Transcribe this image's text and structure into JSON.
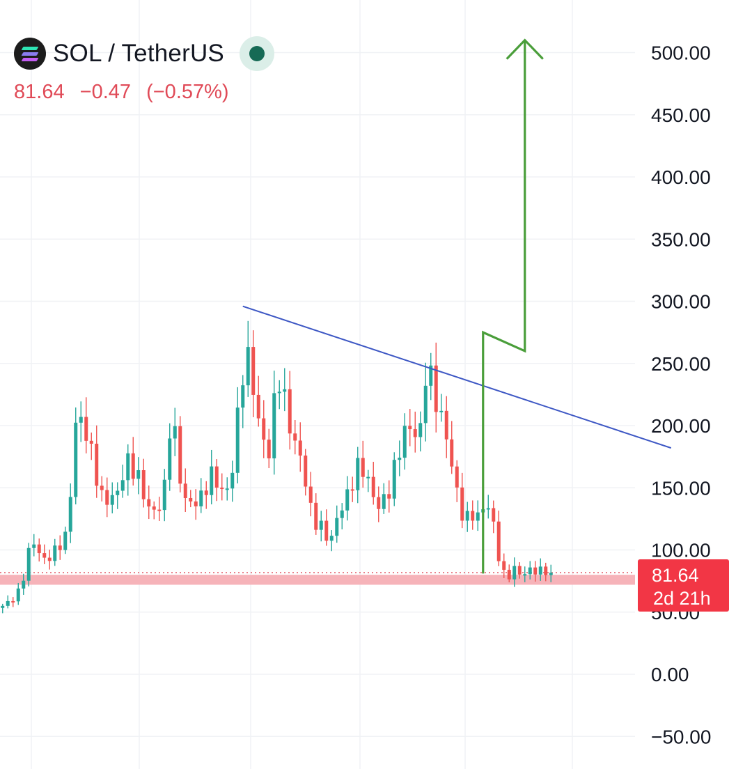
{
  "header": {
    "symbol_title": "SOL / TetherUS",
    "logo_icon": "solana-logo-icon",
    "status_icon": "market-open-dot-icon",
    "status_color": "#166a55"
  },
  "quote": {
    "last": "81.64",
    "change": "−0.47",
    "change_pct": "(−0.57%)",
    "color": "#e04a57"
  },
  "price_tag": {
    "price": "81.64",
    "countdown": "2d 21h",
    "color": "#f23645"
  },
  "chart_data": {
    "type": "candlestick",
    "ylim": [
      -75,
      525
    ],
    "y_ticks": [
      -50,
      0,
      50,
      100,
      150,
      200,
      250,
      300,
      350,
      400,
      450,
      500
    ],
    "y_tick_labels": [
      "−50.00",
      "0.00",
      "50.00",
      "100.00",
      "150.00",
      "200.00",
      "250.00",
      "300.00",
      "350.00",
      "400.00",
      "450.00",
      "500.00"
    ],
    "last_price": 81.64,
    "up_color": "#26a69a",
    "down_color": "#ef5350",
    "price_series_approx": [
      55,
      58,
      62,
      68,
      90,
      110,
      98,
      92,
      95,
      100,
      108,
      112,
      200,
      205,
      195,
      175,
      155,
      135,
      145,
      140,
      160,
      170,
      165,
      155,
      140,
      128,
      135,
      140,
      200,
      190,
      150,
      135,
      140,
      138,
      150,
      160,
      155,
      145,
      150,
      180,
      240,
      255,
      235,
      200,
      185,
      175,
      250,
      225,
      205,
      185,
      175,
      150,
      125,
      120,
      115,
      105,
      125,
      135,
      145,
      160,
      170,
      160,
      145,
      135,
      140,
      150,
      170,
      190,
      200,
      195,
      190,
      245,
      235,
      215,
      200,
      180,
      150,
      130,
      125,
      130,
      125,
      140,
      130,
      100,
      80,
      80,
      85,
      80,
      82,
      85,
      82,
      84,
      81.64
    ],
    "support_zone": [
      72,
      80
    ],
    "trendline": {
      "from": {
        "bar": 46,
        "price": 296
      },
      "to": {
        "bar": 128,
        "price": 182
      },
      "color": "#3d57c4"
    },
    "projection_path": [
      {
        "bar": 92,
        "price": 81
      },
      {
        "bar": 92,
        "price": 275
      },
      {
        "bar": 100,
        "price": 260
      },
      {
        "bar": 100,
        "price": 510
      }
    ],
    "projection_color": "#4a9e3a"
  }
}
